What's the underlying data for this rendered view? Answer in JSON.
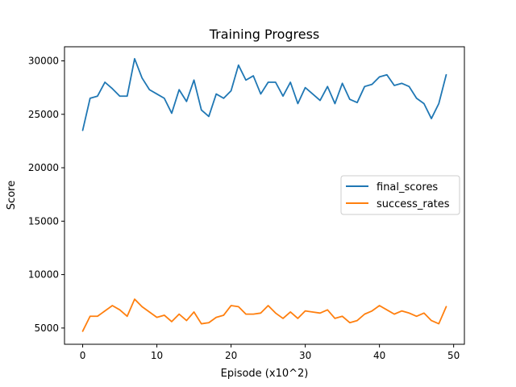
{
  "chart_data": {
    "type": "line",
    "title": "Training Progress",
    "xlabel": "Episode (x10^2)",
    "ylabel": "Score",
    "xlim": [
      -2.45,
      51.45
    ],
    "ylim": [
      3480,
      31320
    ],
    "xticks": [
      0,
      10,
      20,
      30,
      40,
      50
    ],
    "yticks": [
      5000,
      10000,
      15000,
      20000,
      25000,
      30000
    ],
    "grid": false,
    "legend_position": "center-right",
    "x": [
      0,
      1,
      2,
      3,
      4,
      5,
      6,
      7,
      8,
      9,
      10,
      11,
      12,
      13,
      14,
      15,
      16,
      17,
      18,
      19,
      20,
      21,
      22,
      23,
      24,
      25,
      26,
      27,
      28,
      29,
      30,
      31,
      32,
      33,
      34,
      35,
      36,
      37,
      38,
      39,
      40,
      41,
      42,
      43,
      44,
      45,
      46,
      47,
      48,
      49
    ],
    "series": [
      {
        "name": "final_scores",
        "color": "#1f77b4",
        "values": [
          23500,
          26500,
          26700,
          28000,
          27400,
          26700,
          26700,
          30200,
          28400,
          27300,
          26900,
          26500,
          25100,
          27300,
          26200,
          28200,
          25400,
          24800,
          26900,
          26500,
          27200,
          29600,
          28200,
          28600,
          26900,
          28000,
          28000,
          26700,
          28000,
          26000,
          27500,
          26900,
          26300,
          27600,
          26000,
          27900,
          26400,
          26100,
          27600,
          27800,
          28500,
          28700,
          27700,
          27900,
          27600,
          26500,
          26000,
          24600,
          26000,
          28700
        ]
      },
      {
        "name": "success_rates",
        "color": "#ff7f0e",
        "values": [
          4700,
          6100,
          6100,
          6600,
          7100,
          6700,
          6100,
          7700,
          7000,
          6500,
          6000,
          6200,
          5600,
          6300,
          5700,
          6500,
          5400,
          5500,
          6000,
          6200,
          7100,
          7000,
          6300,
          6300,
          6400,
          7100,
          6400,
          5900,
          6500,
          5900,
          6600,
          6500,
          6400,
          6700,
          5900,
          6100,
          5500,
          5700,
          6300,
          6600,
          7100,
          6700,
          6300,
          6600,
          6400,
          6100,
          6400,
          5700,
          5400,
          7000
        ]
      }
    ]
  }
}
